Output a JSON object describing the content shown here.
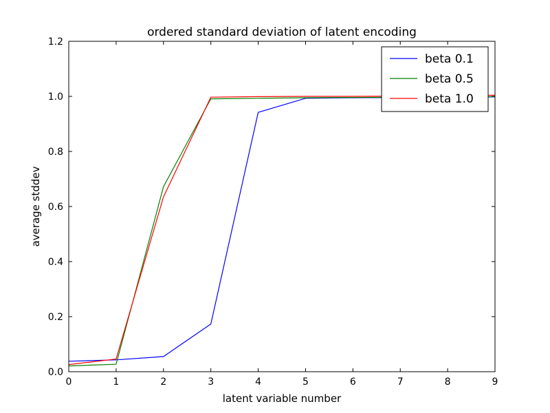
{
  "chart_data": {
    "type": "line",
    "title": "ordered standard deviation of latent encoding",
    "xlabel": "latent variable number",
    "ylabel": "average stddev",
    "xlim": [
      0,
      9
    ],
    "ylim": [
      0.0,
      1.2
    ],
    "xticks": [
      "0",
      "1",
      "2",
      "3",
      "4",
      "5",
      "6",
      "7",
      "8",
      "9"
    ],
    "yticks": [
      "0.0",
      "0.2",
      "0.4",
      "0.6",
      "0.8",
      "1.0",
      "1.2"
    ],
    "grid": false,
    "legend_position": "top-right",
    "x": [
      0,
      1,
      2,
      3,
      4,
      5,
      6,
      7,
      8,
      9
    ],
    "series": [
      {
        "name": "beta 0.1",
        "color": "#0000ff",
        "values": [
          0.038,
          0.043,
          0.055,
          0.173,
          0.942,
          0.993,
          0.995,
          0.996,
          0.997,
          0.998
        ]
      },
      {
        "name": "beta 0.5",
        "color": "#008000",
        "values": [
          0.021,
          0.027,
          0.672,
          0.991,
          0.993,
          0.995,
          0.996,
          0.997,
          0.998,
          0.999
        ]
      },
      {
        "name": "beta 1.0",
        "color": "#ff0000",
        "values": [
          0.026,
          0.046,
          0.635,
          0.997,
          0.999,
          1.0,
          1.0,
          1.001,
          1.002,
          1.004
        ]
      }
    ]
  }
}
